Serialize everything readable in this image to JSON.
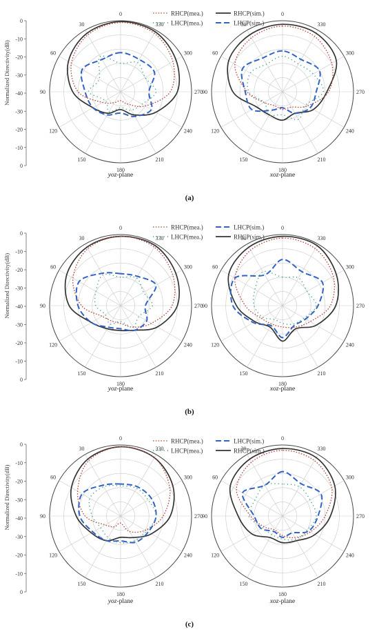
{
  "figure": {
    "y_axis_label": "Normalized Directivity(dB)",
    "y_ticks": [
      "0",
      "-10",
      "-20",
      "-30",
      "-40",
      "-30",
      "-20",
      "-10",
      "0"
    ],
    "angle_labels": [
      "0",
      "30",
      "60",
      "90",
      "120",
      "150",
      "180",
      "210",
      "240",
      "270",
      "300",
      "330"
    ],
    "plane_italic_yoz": "yoz",
    "plane_italic_xoz": "xoz",
    "plane_suffix": "-plane",
    "colors": {
      "rhcp_mea": "#b5443c",
      "rhcp_sim": "#333333",
      "lhcp_mea": "#3a9a84",
      "lhcp_sim": "#2f62c4"
    }
  },
  "chart_data": [
    {
      "type": "polar-line",
      "panel": "(a)",
      "legend": [
        {
          "key": "rhcp_mea",
          "label": "RHCP(mea.)"
        },
        {
          "key": "rhcp_sim",
          "label": "RHCP(sim.)"
        },
        {
          "key": "lhcp_mea",
          "label": "LHCP(mea.)"
        },
        {
          "key": "lhcp_sim",
          "label": "LHCP(sim.)"
        }
      ],
      "r_range_db": [
        -40,
        0
      ],
      "angle_step_deg": 30,
      "angles_deg": [
        0,
        30,
        60,
        90,
        120,
        150,
        180,
        210,
        240,
        270,
        300,
        330
      ],
      "subplots": [
        {
          "plane": "yoz",
          "series": [
            {
              "key": "rhcp_sim",
              "values_db": [
                -0.5,
                -2,
                -6,
                -13,
                -22,
                -26,
                -30,
                -25,
                -17,
                -8,
                -4,
                -1
              ]
            },
            {
              "key": "rhcp_mea",
              "values_db": [
                -1,
                -3,
                -8,
                -16,
                -28,
                -33,
                -35,
                -32,
                -24,
                -12,
                -6,
                -2
              ]
            },
            {
              "key": "lhcp_sim",
              "values_db": [
                -18,
                -19,
                -15,
                -20,
                -22,
                -25,
                -28,
                -24,
                -20,
                -24,
                -18,
                -19
              ]
            },
            {
              "key": "lhcp_mea",
              "values_db": [
                -24,
                -17,
                -26,
                -22,
                -30,
                -27,
                -31,
                -28,
                -26,
                -20,
                -24,
                -21
              ]
            }
          ]
        },
        {
          "plane": "xoz",
          "series": [
            {
              "key": "rhcp_sim",
              "values_db": [
                -2,
                -3,
                -5,
                -12,
                -23,
                -25,
                -24,
                -26,
                -20,
                -15,
                -5,
                -2
              ]
            },
            {
              "key": "rhcp_mea",
              "values_db": [
                -3,
                -5,
                -9,
                -20,
                -28,
                -31,
                -30,
                -30,
                -24,
                -14,
                -8,
                -4
              ]
            },
            {
              "key": "lhcp_sim",
              "values_db": [
                -17,
                -18,
                -14,
                -19,
                -20,
                -28,
                -31,
                -26,
                -22,
                -21,
                -16,
                -19
              ]
            },
            {
              "key": "lhcp_mea",
              "values_db": [
                -20,
                -22,
                -19,
                -21,
                -28,
                -25,
                -27,
                -22,
                -25,
                -17,
                -20,
                -22
              ]
            }
          ]
        }
      ]
    },
    {
      "type": "polar-line",
      "panel": "(b)",
      "legend": [
        {
          "key": "rhcp_mea",
          "label": "RHCP(mea.)"
        },
        {
          "key": "lhcp_sim",
          "label": "LHCP(sim.)"
        },
        {
          "key": "lhcp_mea",
          "label": "LHCP(mea.)"
        },
        {
          "key": "rhcp_sim",
          "label": "RHCP(sim.)"
        }
      ],
      "r_range_db": [
        -40,
        0
      ],
      "angle_step_deg": 30,
      "angles_deg": [
        0,
        30,
        60,
        90,
        120,
        150,
        180,
        210,
        240,
        270,
        300,
        330
      ],
      "subplots": [
        {
          "plane": "yoz",
          "series": [
            {
              "key": "rhcp_sim",
              "values_db": [
                -1,
                -2,
                -5,
                -11,
                -21,
                -25,
                -26,
                -24,
                -16,
                -8,
                -4,
                -1
              ]
            },
            {
              "key": "rhcp_mea",
              "values_db": [
                -1,
                -3,
                -9,
                -18,
                -28,
                -30,
                -30,
                -26,
                -20,
                -11,
                -6,
                -2
              ]
            },
            {
              "key": "lhcp_sim",
              "values_db": [
                -22,
                -19,
                -13,
                -16,
                -21,
                -26,
                -27,
                -24,
                -23,
                -26,
                -17,
                -21
              ]
            },
            {
              "key": "lhcp_mea",
              "values_db": [
                -24,
                -20,
                -24,
                -26,
                -30,
                -28,
                -31,
                -26,
                -28,
                -22,
                -25,
                -22
              ]
            }
          ]
        },
        {
          "plane": "xoz",
          "series": [
            {
              "key": "rhcp_sim",
              "values_db": [
                -1,
                -2,
                -5,
                -14,
                -22,
                -26,
                -20,
                -25,
                -18,
                -10,
                -5,
                -1
              ]
            },
            {
              "key": "rhcp_mea",
              "values_db": [
                -2,
                -4,
                -9,
                -19,
                -26,
                -28,
                -28,
                -26,
                -22,
                -13,
                -7,
                -3
              ]
            },
            {
              "key": "lhcp_sim",
              "values_db": [
                -14,
                -20,
                -9,
                -12,
                -21,
                -27,
                -22,
                -27,
                -25,
                -20,
                -14,
                -18
              ]
            },
            {
              "key": "lhcp_mea",
              "values_db": [
                -24,
                -18,
                -22,
                -24,
                -27,
                -31,
                -30,
                -28,
                -26,
                -21,
                -24,
                -22
              ]
            }
          ]
        }
      ]
    },
    {
      "type": "polar-line",
      "panel": "(c)",
      "legend": [
        {
          "key": "rhcp_mea",
          "label": "RHCP(mea.)"
        },
        {
          "key": "lhcp_sim",
          "label": "LHCP(sim.)"
        },
        {
          "key": "lhcp_mea",
          "label": "LHCP(mea.)"
        },
        {
          "key": "rhcp_sim",
          "label": "RHCP(sim.)"
        }
      ],
      "r_range_db": [
        -40,
        0
      ],
      "angle_step_deg": 30,
      "angles_deg": [
        0,
        30,
        60,
        90,
        120,
        150,
        180,
        210,
        240,
        270,
        300,
        330
      ],
      "subplots": [
        {
          "plane": "yoz",
          "series": [
            {
              "key": "rhcp_sim",
              "values_db": [
                -1,
                -3,
                -8,
                -15,
                -21,
                -24,
                -28,
                -26,
                -20,
                -12,
                -6,
                -2
              ]
            },
            {
              "key": "rhcp_mea",
              "values_db": [
                -1,
                -4,
                -12,
                -20,
                -30,
                -33,
                -36,
                -30,
                -24,
                -16,
                -8,
                -2
              ]
            },
            {
              "key": "lhcp_sim",
              "values_db": [
                -22,
                -20,
                -15,
                -17,
                -22,
                -24,
                -26,
                -23,
                -22,
                -20,
                -20,
                -21
              ]
            },
            {
              "key": "lhcp_mea",
              "values_db": [
                -23,
                -21,
                -20,
                -24,
                -27,
                -26,
                -25,
                -24,
                -23,
                -20,
                -22,
                -22
              ]
            }
          ]
        },
        {
          "plane": "xoz",
          "series": [
            {
              "key": "rhcp_sim",
              "values_db": [
                -2,
                -3,
                -6,
                -15,
                -20,
                -26,
                -25,
                -24,
                -19,
                -13,
                -6,
                -2
              ]
            },
            {
              "key": "rhcp_mea",
              "values_db": [
                -3,
                -5,
                -10,
                -22,
                -28,
                -31,
                -29,
                -26,
                -22,
                -16,
                -8,
                -4
              ]
            },
            {
              "key": "lhcp_sim",
              "values_db": [
                -15,
                -20,
                -14,
                -24,
                -26,
                -30,
                -28,
                -29,
                -23,
                -20,
                -15,
                -19
              ]
            },
            {
              "key": "lhcp_mea",
              "values_db": [
                -22,
                -20,
                -22,
                -21,
                -27,
                -28,
                -27,
                -25,
                -24,
                -21,
                -22,
                -21
              ]
            }
          ]
        }
      ]
    }
  ]
}
